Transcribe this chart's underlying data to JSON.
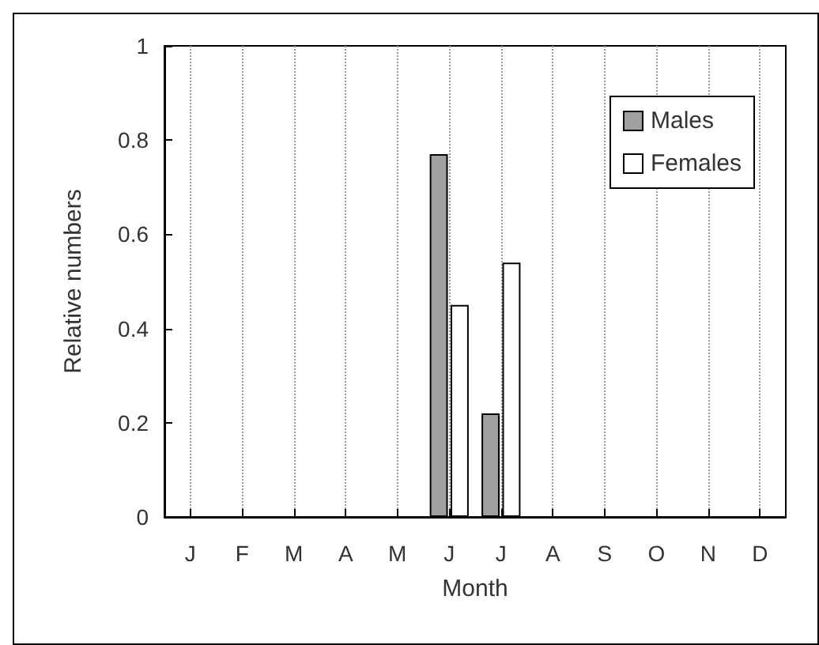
{
  "chart_data": {
    "type": "bar",
    "xlabel": "Month",
    "ylabel": "Relative numbers",
    "categories": [
      "J",
      "F",
      "M",
      "A",
      "M",
      "J",
      "J",
      "A",
      "S",
      "O",
      "N",
      "D"
    ],
    "series": [
      {
        "name": "Males",
        "color": "#a0a0a0",
        "values": [
          0,
          0,
          0,
          0,
          0,
          0.77,
          0.22,
          0,
          0,
          0,
          0,
          0
        ]
      },
      {
        "name": "Females",
        "color": "#ffffff",
        "values": [
          0,
          0,
          0,
          0,
          0,
          0.45,
          0.54,
          0,
          0,
          0,
          0,
          0
        ]
      }
    ],
    "ylim": [
      0,
      1
    ],
    "yticks": [
      0,
      0.2,
      0.4,
      0.6,
      0.8,
      1
    ],
    "grid": "x",
    "legend": "top right"
  }
}
